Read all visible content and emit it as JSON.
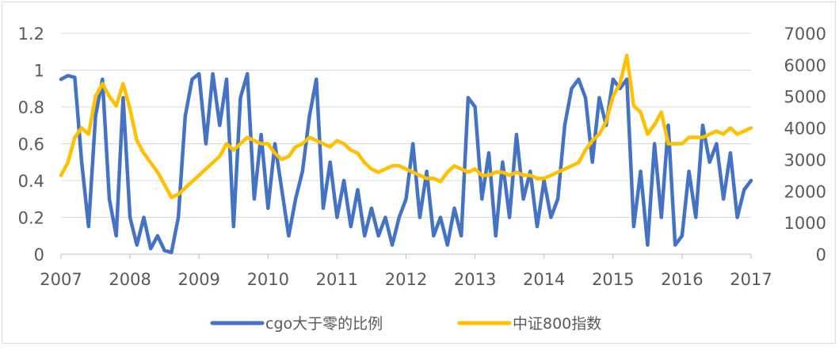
{
  "chart_data": {
    "type": "line",
    "title": "",
    "xlabel": "",
    "ylabel": "",
    "x_ticks": [
      "2007",
      "2008",
      "2009",
      "2010",
      "2011",
      "2012",
      "2013",
      "2014",
      "2015",
      "2016",
      "2017"
    ],
    "y_left": {
      "min": 0,
      "max": 1.2,
      "ticks": [
        "0",
        "0.2",
        "0.4",
        "0.6",
        "0.8",
        "1",
        "1.2"
      ]
    },
    "y_right": {
      "min": 0,
      "max": 7000,
      "ticks": [
        "0",
        "1000",
        "2000",
        "3000",
        "4000",
        "5000",
        "6000",
        "7000"
      ]
    },
    "grid": true,
    "legend_position": "bottom",
    "series": [
      {
        "name": "cgo大于零的比例",
        "axis": "left",
        "color": "#4472C4",
        "x": [
          2007.0,
          2007.1,
          2007.2,
          2007.3,
          2007.4,
          2007.5,
          2007.6,
          2007.7,
          2007.8,
          2007.9,
          2008.0,
          2008.1,
          2008.2,
          2008.3,
          2008.4,
          2008.5,
          2008.6,
          2008.7,
          2008.8,
          2008.9,
          2009.0,
          2009.1,
          2009.2,
          2009.3,
          2009.4,
          2009.5,
          2009.6,
          2009.7,
          2009.8,
          2009.9,
          2010.0,
          2010.1,
          2010.2,
          2010.3,
          2010.4,
          2010.5,
          2010.6,
          2010.7,
          2010.8,
          2010.9,
          2011.0,
          2011.1,
          2011.2,
          2011.3,
          2011.4,
          2011.5,
          2011.6,
          2011.7,
          2011.8,
          2011.9,
          2012.0,
          2012.1,
          2012.2,
          2012.3,
          2012.4,
          2012.5,
          2012.6,
          2012.7,
          2012.8,
          2012.9,
          2013.0,
          2013.1,
          2013.2,
          2013.3,
          2013.4,
          2013.5,
          2013.6,
          2013.7,
          2013.8,
          2013.9,
          2014.0,
          2014.1,
          2014.2,
          2014.3,
          2014.4,
          2014.5,
          2014.6,
          2014.7,
          2014.8,
          2014.9,
          2015.0,
          2015.1,
          2015.2,
          2015.3,
          2015.4,
          2015.5,
          2015.6,
          2015.7,
          2015.8,
          2015.9,
          2016.0,
          2016.1,
          2016.2,
          2016.3,
          2016.4,
          2016.5,
          2016.6,
          2016.7,
          2016.8,
          2016.9,
          2017.0
        ],
        "values": [
          0.95,
          0.97,
          0.96,
          0.5,
          0.15,
          0.75,
          0.95,
          0.3,
          0.1,
          0.85,
          0.2,
          0.05,
          0.2,
          0.03,
          0.1,
          0.02,
          0.01,
          0.2,
          0.75,
          0.95,
          0.98,
          0.6,
          0.98,
          0.7,
          0.95,
          0.15,
          0.85,
          0.98,
          0.3,
          0.65,
          0.25,
          0.6,
          0.35,
          0.1,
          0.3,
          0.45,
          0.75,
          0.95,
          0.25,
          0.5,
          0.2,
          0.4,
          0.15,
          0.35,
          0.1,
          0.25,
          0.1,
          0.2,
          0.05,
          0.2,
          0.3,
          0.6,
          0.2,
          0.45,
          0.1,
          0.2,
          0.05,
          0.25,
          0.1,
          0.85,
          0.8,
          0.3,
          0.55,
          0.1,
          0.5,
          0.2,
          0.65,
          0.3,
          0.45,
          0.15,
          0.4,
          0.2,
          0.3,
          0.7,
          0.9,
          0.95,
          0.85,
          0.5,
          0.85,
          0.7,
          0.95,
          0.9,
          0.95,
          0.15,
          0.45,
          0.05,
          0.6,
          0.2,
          0.7,
          0.05,
          0.1,
          0.45,
          0.2,
          0.7,
          0.5,
          0.6,
          0.3,
          0.55,
          0.2,
          0.35,
          0.4
        ]
      },
      {
        "name": "中证800指数",
        "axis": "right",
        "color": "#FFC000",
        "x": [
          2007.0,
          2007.1,
          2007.2,
          2007.3,
          2007.4,
          2007.5,
          2007.6,
          2007.7,
          2007.8,
          2007.9,
          2008.0,
          2008.1,
          2008.2,
          2008.3,
          2008.4,
          2008.5,
          2008.6,
          2008.7,
          2008.8,
          2008.9,
          2009.0,
          2009.1,
          2009.2,
          2009.3,
          2009.4,
          2009.5,
          2009.6,
          2009.7,
          2009.8,
          2009.9,
          2010.0,
          2010.1,
          2010.2,
          2010.3,
          2010.4,
          2010.5,
          2010.6,
          2010.7,
          2010.8,
          2010.9,
          2011.0,
          2011.1,
          2011.2,
          2011.3,
          2011.4,
          2011.5,
          2011.6,
          2011.7,
          2011.8,
          2011.9,
          2012.0,
          2012.1,
          2012.2,
          2012.3,
          2012.4,
          2012.5,
          2012.6,
          2012.7,
          2012.8,
          2012.9,
          2013.0,
          2013.1,
          2013.2,
          2013.3,
          2013.4,
          2013.5,
          2013.6,
          2013.7,
          2013.8,
          2013.9,
          2014.0,
          2014.1,
          2014.2,
          2014.3,
          2014.4,
          2014.5,
          2014.6,
          2014.7,
          2014.8,
          2014.9,
          2015.0,
          2015.1,
          2015.2,
          2015.3,
          2015.4,
          2015.5,
          2015.6,
          2015.7,
          2015.8,
          2015.9,
          2016.0,
          2016.1,
          2016.2,
          2016.3,
          2016.4,
          2016.5,
          2016.6,
          2016.7,
          2016.8,
          2016.9,
          2017.0
        ],
        "values": [
          2500,
          2900,
          3700,
          4000,
          3800,
          5000,
          5400,
          5000,
          4700,
          5400,
          4600,
          3600,
          3200,
          2900,
          2600,
          2200,
          1800,
          1900,
          2100,
          2300,
          2500,
          2700,
          2900,
          3100,
          3500,
          3300,
          3500,
          3700,
          3600,
          3500,
          3500,
          3200,
          3000,
          3100,
          3400,
          3500,
          3700,
          3600,
          3500,
          3400,
          3600,
          3500,
          3300,
          3200,
          2900,
          2700,
          2600,
          2700,
          2800,
          2800,
          2700,
          2600,
          2500,
          2400,
          2400,
          2300,
          2600,
          2800,
          2700,
          2600,
          2700,
          2500,
          2500,
          2600,
          2600,
          2500,
          2600,
          2500,
          2500,
          2400,
          2400,
          2500,
          2600,
          2700,
          2800,
          2900,
          3300,
          3600,
          3800,
          4200,
          5000,
          5400,
          6300,
          4700,
          4500,
          3800,
          4100,
          4500,
          3500,
          3500,
          3500,
          3700,
          3700,
          3700,
          3800,
          3900,
          3800,
          4000,
          3800,
          3900,
          4000
        ]
      }
    ]
  }
}
